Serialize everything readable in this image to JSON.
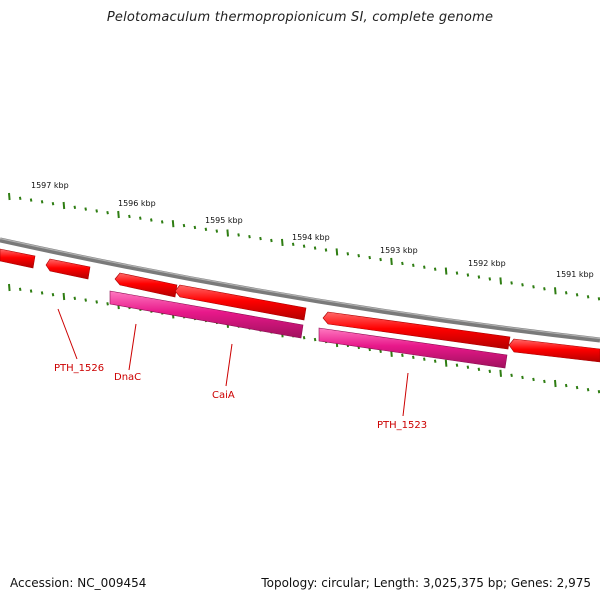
{
  "title": "Pelotomaculum thermopropionicum SI, complete genome",
  "footer": {
    "accession_label": "Accession:",
    "accession": "NC_009454",
    "topology_label": "Topology:",
    "topology": "circular",
    "length_label": "Length:",
    "length": "3,025,375 bp",
    "genes_label": "Genes:",
    "genes": "2,975"
  },
  "tick_labels": [
    "1597 kbp",
    "1596 kbp",
    "1595 kbp",
    "1594 kbp",
    "1593 kbp",
    "1592 kbp",
    "1591 kbp"
  ],
  "gene_labels": [
    "PTH_1526",
    "DnaC",
    "CaiA",
    "PTH_1523"
  ],
  "colors": {
    "backbone": "#808080",
    "gene_red": "#ff0000",
    "gene_pink": "#e8188a",
    "tick_green": "#2e7d12",
    "label_red": "#cc0000"
  }
}
